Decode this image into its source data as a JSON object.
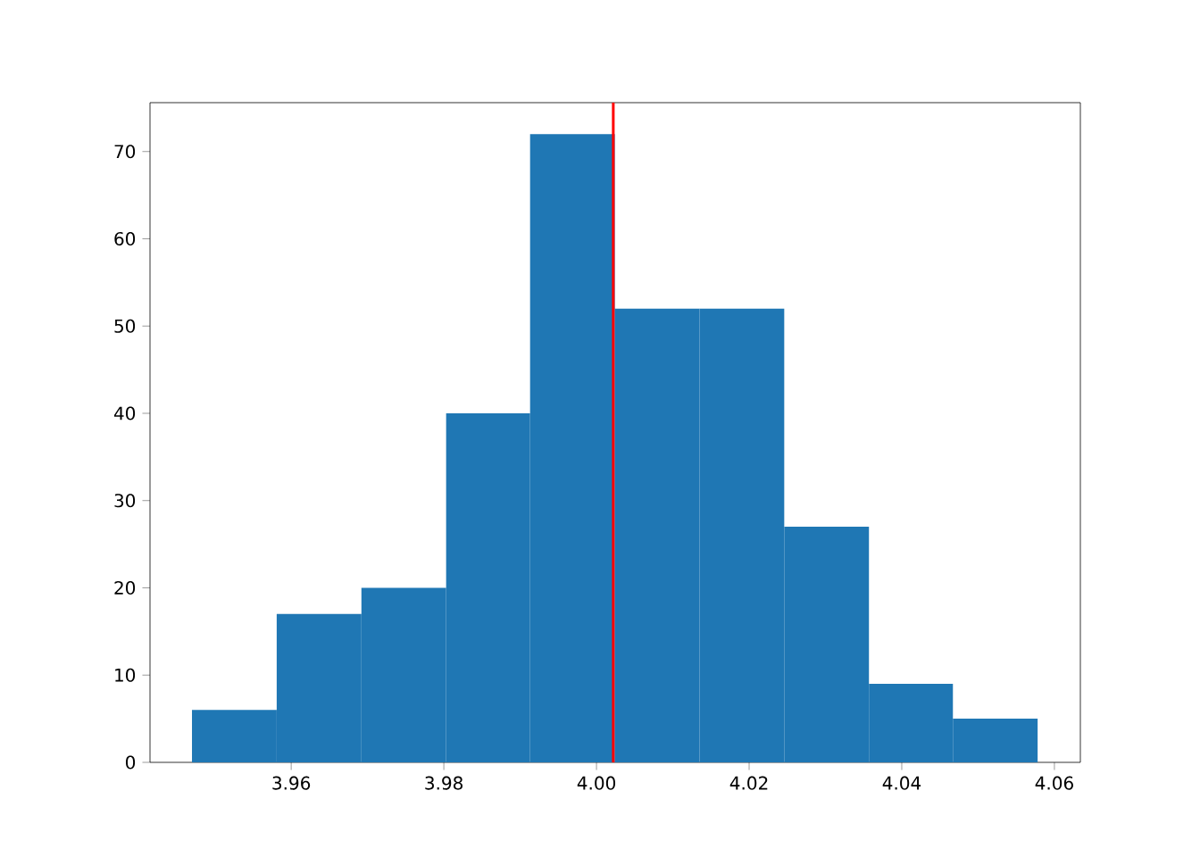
{
  "chart_data": {
    "type": "histogram",
    "bins": [
      3.947,
      3.9581,
      3.9692,
      3.9803,
      3.9913,
      4.0024,
      4.0135,
      4.0246,
      4.0357,
      4.0467,
      4.0578
    ],
    "values": [
      6,
      17,
      20,
      40,
      72,
      52,
      52,
      27,
      9,
      5
    ],
    "color": "#1f77b4",
    "xlim": [
      3.9415,
      4.0634
    ],
    "ylim": [
      0,
      75.6
    ],
    "xticks": [
      {
        "value": 3.96,
        "label": "3.96"
      },
      {
        "value": 3.98,
        "label": "3.98"
      },
      {
        "value": 4.0,
        "label": "4.00"
      },
      {
        "value": 4.02,
        "label": "4.02"
      },
      {
        "value": 4.04,
        "label": "4.04"
      },
      {
        "value": 4.06,
        "label": "4.06"
      }
    ],
    "yticks": [
      0,
      10,
      20,
      30,
      40,
      50,
      60,
      70
    ],
    "ref_lines": [
      {
        "axis": "x",
        "value": 4.0022,
        "color": "#ff0000"
      }
    ],
    "grid": false
  }
}
